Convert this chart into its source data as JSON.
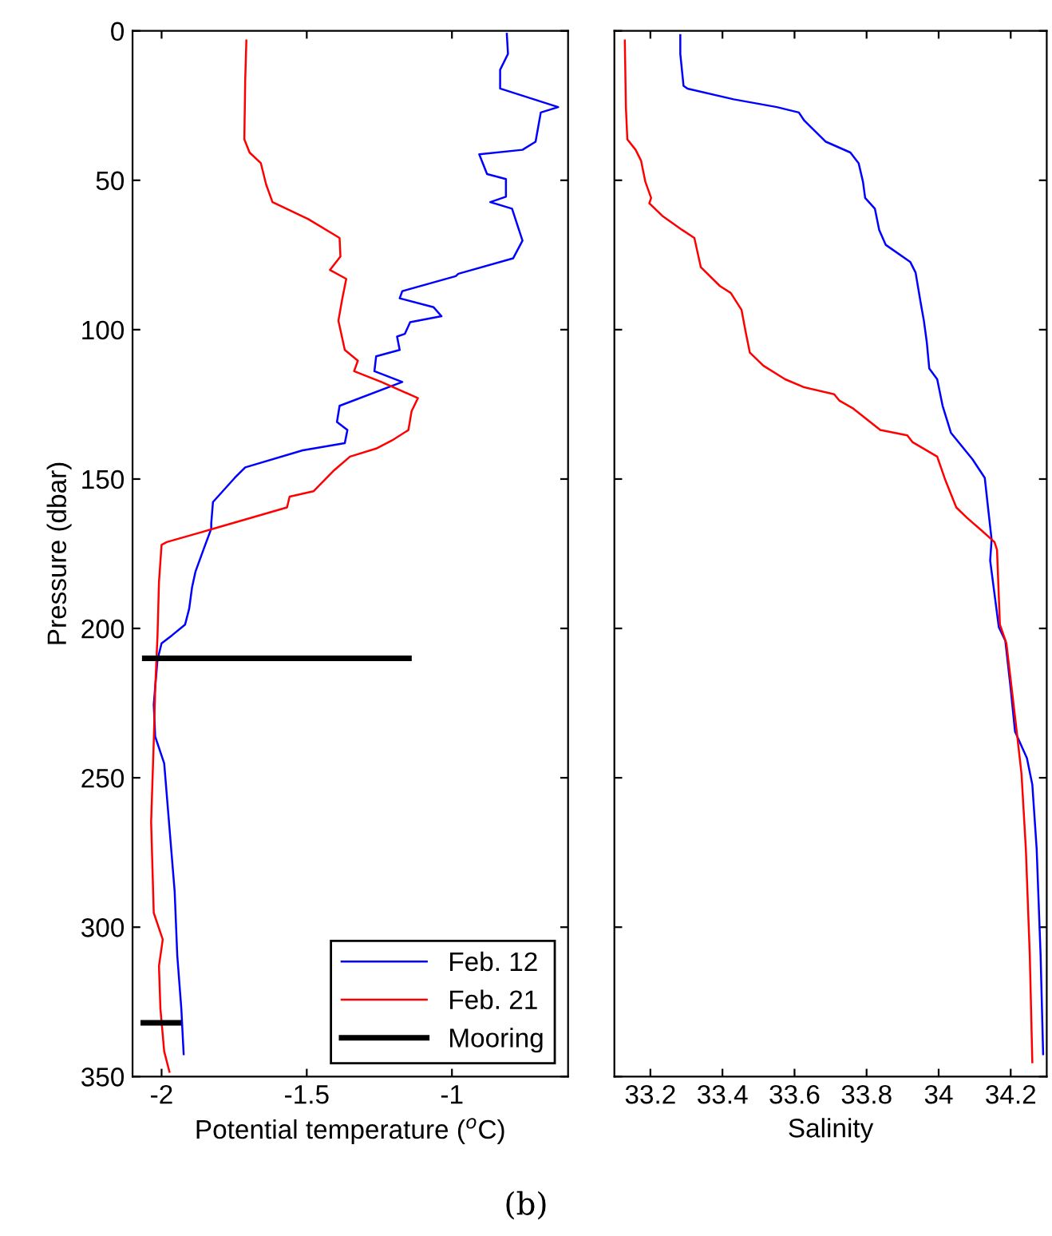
{
  "chart_data": [
    {
      "type": "line",
      "xlabel": "Potential temperature ($^{o}$C)",
      "ylabel": "Pressure (dbar)",
      "xlim": [
        -2.1,
        -0.6
      ],
      "xticks": [
        -2,
        -1.5,
        -1
      ],
      "ylim": [
        350,
        0
      ],
      "yticks": [
        0,
        50,
        100,
        150,
        200,
        250,
        300,
        350
      ],
      "grid": false,
      "legend": "bottom right",
      "annotations": [
        "(b)"
      ],
      "series": [
        {
          "name": "Feb. 12",
          "color": "#0000ff",
          "x": [
            -0.811,
            -0.807,
            -0.834,
            -0.834,
            -0.634,
            -0.694,
            -0.712,
            -0.757,
            -0.906,
            -0.879,
            -0.814,
            -0.814,
            -0.868,
            -0.793,
            -0.757,
            -0.789,
            -0.978,
            -0.987,
            -1.171,
            -1.18,
            -1.063,
            -1.036,
            -1.144,
            -1.162,
            -1.189,
            -1.18,
            -1.261,
            -1.267,
            -1.171,
            -1.387,
            -1.396,
            -1.36,
            -1.369,
            -1.514,
            -1.712,
            -1.748,
            -1.823,
            -1.829,
            -1.829,
            -1.856,
            -1.883,
            -1.895,
            -1.905,
            -1.919,
            -1.964,
            -2.0,
            -2.014,
            -2.027,
            -2.022,
            -1.991,
            -1.973,
            -1.955,
            -1.946,
            -1.932,
            -1.924
          ],
          "values": [
            1,
            7.7,
            13,
            19.3,
            25.5,
            27.3,
            37.1,
            39.8,
            41.3,
            47.9,
            49.6,
            55.5,
            57.3,
            59.5,
            70.2,
            76.1,
            81.3,
            82.1,
            87.1,
            89.5,
            92.5,
            95.5,
            97.5,
            101.4,
            102.3,
            106.8,
            108.9,
            113.9,
            117.5,
            125.5,
            130.9,
            133.6,
            138,
            140.4,
            146.1,
            149.6,
            157.7,
            164.8,
            166.6,
            173.7,
            180.9,
            186.2,
            193.4,
            198.7,
            202.3,
            205,
            210.4,
            225.5,
            236.2,
            245.2,
            266.6,
            288,
            309.5,
            327.3,
            342.5
          ]
        },
        {
          "name": "Feb. 21",
          "color": "#ff0000",
          "x": [
            -1.708,
            -1.712,
            -1.715,
            -1.697,
            -1.658,
            -1.64,
            -1.618,
            -1.495,
            -1.387,
            -1.384,
            -1.42,
            -1.364,
            -1.378,
            -1.391,
            -1.369,
            -1.324,
            -1.337,
            -1.243,
            -1.117,
            -1.139,
            -1.15,
            -1.207,
            -1.261,
            -1.351,
            -1.405,
            -1.477,
            -1.559,
            -1.568,
            -1.82,
            -1.982,
            -2.0,
            -2.009,
            -2.014,
            -2.022,
            -2.027,
            -2.036,
            -2.027,
            -1.996,
            -2.009,
            -2.004,
            -1.991,
            -1.973
          ],
          "values": [
            3.2,
            16.6,
            36.3,
            40.7,
            44.3,
            51.4,
            57.3,
            63,
            69.3,
            75.5,
            80,
            83,
            89.8,
            97,
            106.8,
            110.4,
            113.9,
            117.5,
            122.9,
            127.3,
            133.6,
            137.1,
            139.8,
            142.5,
            147,
            154.1,
            155.9,
            159.5,
            166.6,
            171.1,
            172,
            184.5,
            202.3,
            220.2,
            238,
            264.8,
            295.2,
            304.1,
            313,
            327.3,
            341.6,
            348.4
          ]
        },
        {
          "name": "Mooring",
          "color": "#000000",
          "x": [
            -2.058,
            -1.148,
            -1.6,
            -2.063,
            -1.942
          ],
          "values": [
            210,
            210,
            null,
            332,
            332
          ]
        }
      ]
    },
    {
      "type": "line",
      "xlabel": "Salinity",
      "xlim": [
        33.1,
        34.3
      ],
      "xticks": [
        33.2,
        33.4,
        33.6,
        33.8,
        34,
        34.2
      ],
      "ylim": [
        350,
        0
      ],
      "yticks": [
        0,
        50,
        100,
        150,
        200,
        250,
        300,
        350
      ],
      "tick_labels": "x",
      "grid": false,
      "series": [
        {
          "color": "#0000ff",
          "x": [
            33.283,
            33.283,
            33.292,
            33.303,
            33.431,
            33.551,
            33.612,
            33.627,
            33.687,
            33.755,
            33.778,
            33.79,
            33.796,
            33.823,
            33.835,
            33.853,
            33.921,
            33.936,
            33.951,
            33.959,
            33.967,
            33.974,
            33.996,
            34.011,
            34.034,
            34.094,
            34.128,
            34.137,
            34.147,
            34.143,
            34.167,
            34.185,
            34.2,
            34.212,
            34.245,
            34.26,
            34.272,
            34.283,
            34.29
          ],
          "values": [
            1.4,
            7.7,
            18.4,
            19.3,
            22.9,
            25.5,
            27.3,
            30,
            37.1,
            40.7,
            44.3,
            50.5,
            55.9,
            59.5,
            66.6,
            71.6,
            77.3,
            80.9,
            91.6,
            97,
            104.1,
            113,
            116.6,
            125.5,
            134.5,
            143.4,
            149.6,
            159.5,
            170.2,
            177.3,
            199.6,
            204.1,
            220.2,
            234.5,
            243.4,
            252.3,
            273.7,
            309.5,
            342.5
          ]
        },
        {
          "color": "#ff0000",
          "x": [
            33.129,
            33.132,
            33.136,
            33.159,
            33.174,
            33.186,
            33.202,
            33.197,
            33.235,
            33.288,
            33.322,
            33.34,
            33.393,
            33.423,
            33.453,
            33.464,
            33.476,
            33.514,
            33.574,
            33.627,
            33.71,
            33.725,
            33.763,
            33.838,
            33.913,
            33.928,
            33.996,
            34.019,
            34.049,
            34.079,
            34.122,
            34.155,
            34.162,
            34.17,
            34.188,
            34.215,
            34.23,
            34.242,
            34.253,
            34.26
          ],
          "values": [
            3.2,
            25.5,
            36.3,
            39.8,
            43.4,
            50.5,
            55.9,
            57.7,
            62.1,
            66.6,
            69.3,
            79.1,
            85.4,
            87.7,
            93.4,
            100.5,
            107.7,
            112.1,
            116.6,
            119.3,
            121.6,
            123.8,
            126.4,
            133.6,
            135.4,
            137.7,
            142.5,
            150.5,
            159.5,
            163,
            167.5,
            171.1,
            173.7,
            198.7,
            205,
            232.7,
            248.7,
            273.7,
            309.5,
            345.2
          ]
        }
      ]
    }
  ]
}
